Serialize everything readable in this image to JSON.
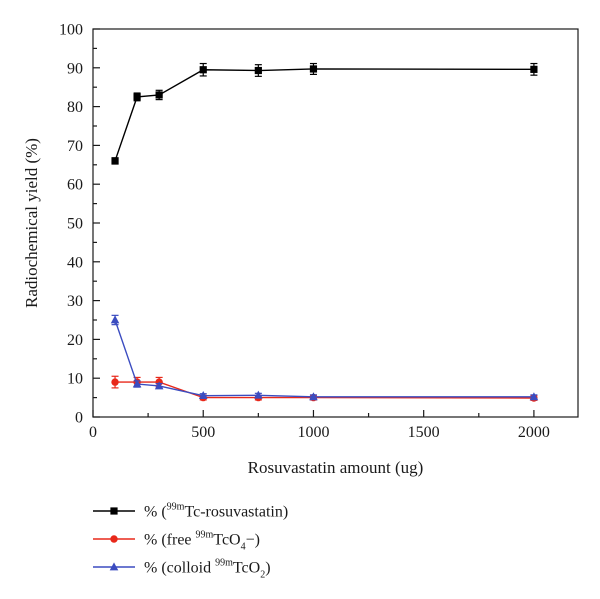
{
  "chart_data": {
    "type": "line",
    "xlabel": "Rosuvastatin amount (ug)",
    "ylabel": "Radiochemical yield (%)",
    "xlim": [
      0,
      2200
    ],
    "ylim": [
      0,
      100
    ],
    "xticks": [
      0,
      500,
      1000,
      1500,
      2000
    ],
    "yticks": [
      0,
      10,
      20,
      30,
      40,
      50,
      60,
      70,
      80,
      90,
      100
    ],
    "grid": false,
    "legend_position": "bottom",
    "series": [
      {
        "name": "% (99mTc-rosuvastatin)",
        "legend": {
          "pre": "% (",
          "sup": "99m",
          "main": "Tc-rosuvastatin)",
          "sub": "",
          "post": ""
        },
        "color": "#000000",
        "marker": "square",
        "x": [
          100,
          200,
          300,
          500,
          750,
          1000,
          2000
        ],
        "y": [
          66.0,
          82.5,
          83.0,
          89.5,
          89.3,
          89.7,
          89.6
        ],
        "err": [
          0.8,
          1.0,
          1.2,
          1.6,
          1.5,
          1.4,
          1.5
        ]
      },
      {
        "name": "% (free 99mTcO4−)",
        "legend": {
          "pre": "% (free ",
          "sup": "99m",
          "main": "TcO",
          "sub": "4",
          "post": "−)"
        },
        "color": "#e8281a",
        "marker": "circle",
        "x": [
          100,
          200,
          300,
          500,
          750,
          1000,
          2000
        ],
        "y": [
          9.0,
          9.0,
          9.0,
          5.0,
          5.0,
          5.0,
          4.9
        ],
        "err": [
          1.5,
          1.2,
          1.2,
          0.6,
          0.6,
          0.6,
          0.6
        ]
      },
      {
        "name": "% (colloid 99mTcO2)",
        "legend": {
          "pre": "% (colloid ",
          "sup": "99m",
          "main": "TcO",
          "sub": "2",
          "post": ")"
        },
        "color": "#3b4cc0",
        "marker": "triangle",
        "x": [
          100,
          200,
          300,
          500,
          750,
          1000,
          2000
        ],
        "y": [
          25.0,
          8.5,
          8.0,
          5.5,
          5.6,
          5.2,
          5.2
        ],
        "err": [
          1.2,
          0.8,
          0.6,
          0.5,
          0.5,
          0.5,
          0.5
        ]
      }
    ]
  }
}
